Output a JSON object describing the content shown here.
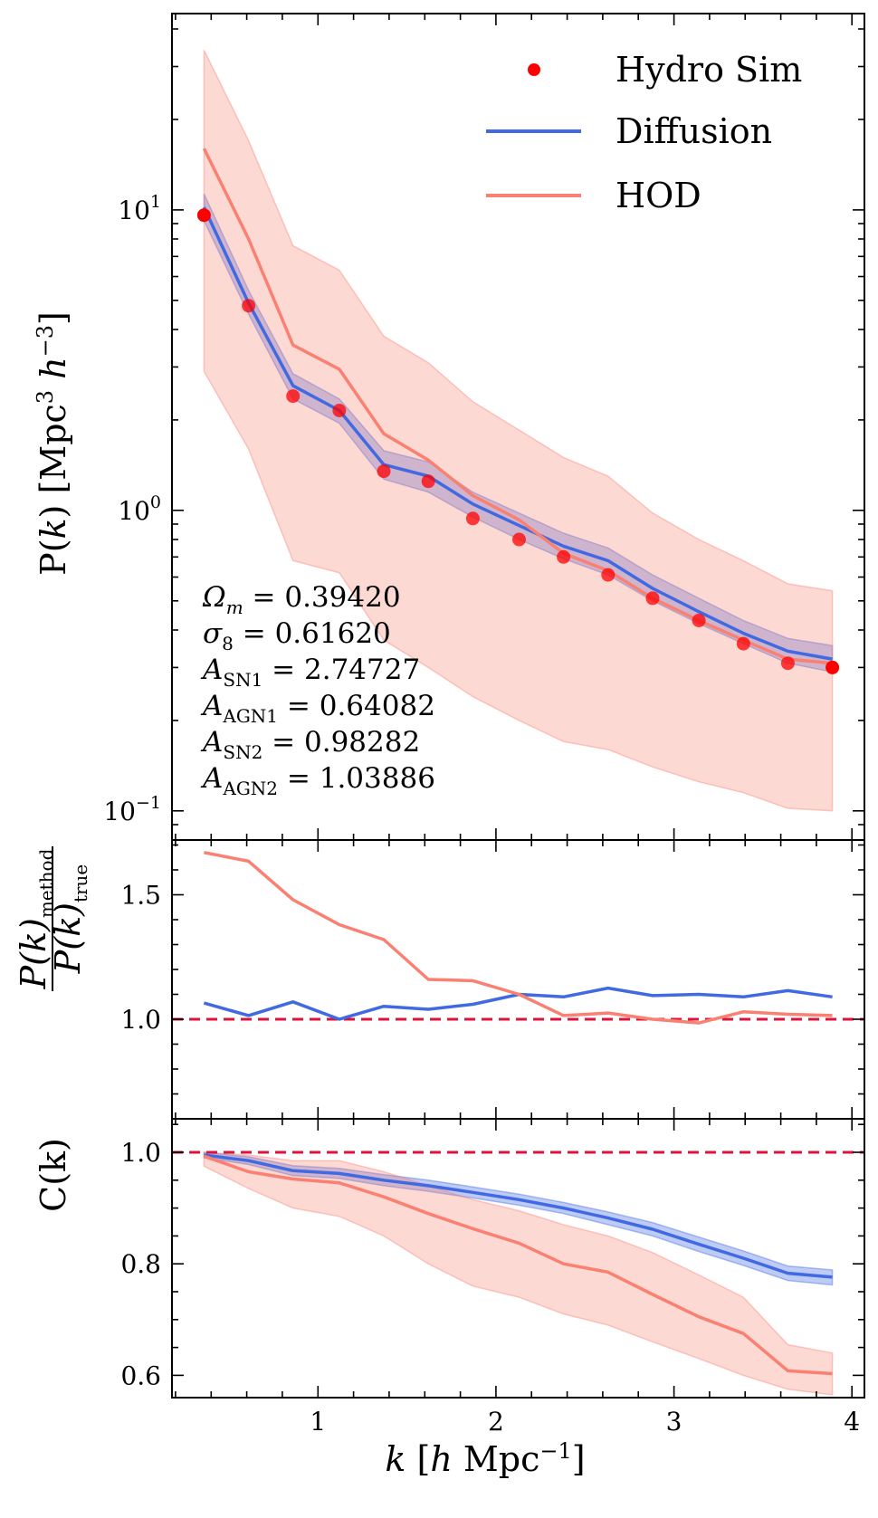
{
  "chart_data": [
    {
      "type": "line",
      "panel": "power-spectrum",
      "yscale": "log",
      "xlabel": "k [h Mpc⁻¹]",
      "ylabel": "P(k) [Mpc³ h⁻³]",
      "xlim": [
        0.18,
        4.07
      ],
      "ylim": [
        0.08,
        45
      ],
      "y_ticks": [
        {
          "value": 10,
          "mantissa": "10",
          "exp": "1"
        },
        {
          "value": 1,
          "mantissa": "10",
          "exp": "0"
        },
        {
          "value": 0.1,
          "mantissa": "10",
          "exp": "−1"
        }
      ],
      "x": [
        0.36,
        0.61,
        0.86,
        1.12,
        1.37,
        1.62,
        1.87,
        2.13,
        2.38,
        2.63,
        2.88,
        3.14,
        3.39,
        3.64,
        3.89
      ],
      "series": [
        {
          "name": "Hydro Sim",
          "kind": "scatter",
          "color": "#ff0000",
          "values": [
            9.6,
            4.8,
            2.4,
            2.15,
            1.35,
            1.25,
            0.94,
            0.8,
            0.7,
            0.61,
            0.51,
            0.43,
            0.36,
            0.31,
            0.3
          ]
        },
        {
          "name": "Diffusion",
          "kind": "line",
          "color": "#4169e1",
          "values": [
            10.2,
            4.9,
            2.6,
            2.15,
            1.42,
            1.3,
            1.05,
            0.89,
            0.76,
            0.68,
            0.55,
            0.46,
            0.39,
            0.34,
            0.32
          ],
          "band_lower": [
            9.2,
            4.5,
            2.35,
            1.95,
            1.27,
            1.15,
            0.95,
            0.8,
            0.69,
            0.61,
            0.5,
            0.42,
            0.36,
            0.31,
            0.29
          ],
          "band_upper": [
            11.3,
            5.4,
            2.85,
            2.35,
            1.58,
            1.45,
            1.15,
            0.98,
            0.84,
            0.75,
            0.61,
            0.51,
            0.43,
            0.375,
            0.355
          ]
        },
        {
          "name": "HOD",
          "kind": "line",
          "color": "#fa8072",
          "values": [
            16,
            8,
            3.55,
            2.95,
            1.8,
            1.47,
            1.12,
            0.93,
            0.72,
            0.63,
            0.51,
            0.43,
            0.37,
            0.32,
            0.31
          ],
          "band_lower": [
            2.9,
            1.6,
            0.68,
            0.62,
            0.37,
            0.3,
            0.24,
            0.2,
            0.17,
            0.16,
            0.14,
            0.125,
            0.115,
            0.102,
            0.1
          ],
          "band_upper": [
            34,
            17,
            7.6,
            6.3,
            3.8,
            3.1,
            2.3,
            1.85,
            1.5,
            1.3,
            0.98,
            0.8,
            0.68,
            0.57,
            0.54
          ]
        }
      ],
      "legend": [
        "Hydro Sim",
        "Diffusion",
        "HOD"
      ],
      "legend_position": "top-right",
      "annotations": [
        {
          "sym": "Ω",
          "sub": "m",
          "value": "= 0.39420"
        },
        {
          "sym": "σ",
          "sub": "8",
          "value": "= 0.61620"
        },
        {
          "sym": "A",
          "sub": "SN1",
          "value": "= 2.74727"
        },
        {
          "sym": "A",
          "sub": "AGN1",
          "value": "= 0.64082"
        },
        {
          "sym": "A",
          "sub": "SN2",
          "value": "= 0.98282"
        },
        {
          "sym": "A",
          "sub": "AGN2",
          "value": "= 1.03886"
        }
      ]
    },
    {
      "type": "line",
      "panel": "ratio",
      "ylabel": "P(k)method / P(k)true",
      "ylabel_parts": {
        "num": "P(k)",
        "num_sub": "method",
        "den": "P(k)",
        "den_sub": "true"
      },
      "xlim": [
        0.18,
        4.07
      ],
      "ylim": [
        0.6,
        1.72
      ],
      "y_ticks": [
        "1.0",
        "1.5"
      ],
      "reference_line": {
        "y": 1.0,
        "color": "#dc143c",
        "style": "dashed"
      },
      "x": [
        0.36,
        0.61,
        0.86,
        1.12,
        1.37,
        1.62,
        1.87,
        2.13,
        2.38,
        2.63,
        2.88,
        3.14,
        3.39,
        3.64,
        3.89
      ],
      "series": [
        {
          "name": "Diffusion",
          "color": "#4169e1",
          "values": [
            1.065,
            1.015,
            1.07,
            1.0,
            1.052,
            1.04,
            1.06,
            1.1,
            1.09,
            1.125,
            1.095,
            1.1,
            1.09,
            1.115,
            1.09
          ]
        },
        {
          "name": "HOD",
          "color": "#fa8072",
          "values": [
            1.67,
            1.635,
            1.48,
            1.38,
            1.32,
            1.16,
            1.155,
            1.1,
            1.015,
            1.025,
            1.0,
            0.985,
            1.03,
            1.02,
            1.015
          ]
        }
      ]
    },
    {
      "type": "line",
      "panel": "cross-correlation",
      "ylabel": "C(k)",
      "xlabel": "k [h Mpc⁻¹]",
      "xlim": [
        0.18,
        4.07
      ],
      "ylim": [
        0.56,
        1.06
      ],
      "x_ticks": [
        "1",
        "2",
        "3",
        "4"
      ],
      "y_ticks": [
        "0.6",
        "0.8",
        "1.0"
      ],
      "reference_line": {
        "y": 1.0,
        "color": "#dc143c",
        "style": "dashed"
      },
      "x": [
        0.36,
        0.61,
        0.86,
        1.12,
        1.37,
        1.62,
        1.87,
        2.13,
        2.38,
        2.63,
        2.88,
        3.14,
        3.39,
        3.64,
        3.89
      ],
      "series": [
        {
          "name": "Diffusion",
          "color": "#4169e1",
          "values": [
            0.995,
            0.985,
            0.967,
            0.962,
            0.95,
            0.94,
            0.928,
            0.915,
            0.9,
            0.882,
            0.862,
            0.835,
            0.81,
            0.783,
            0.776
          ],
          "band_lower": [
            0.99,
            0.978,
            0.958,
            0.953,
            0.94,
            0.93,
            0.918,
            0.905,
            0.89,
            0.87,
            0.85,
            0.822,
            0.797,
            0.77,
            0.762
          ],
          "band_upper": [
            1.0,
            0.992,
            0.976,
            0.971,
            0.96,
            0.95,
            0.938,
            0.925,
            0.91,
            0.893,
            0.874,
            0.848,
            0.823,
            0.796,
            0.789
          ]
        },
        {
          "name": "HOD",
          "color": "#fa8072",
          "values": [
            0.993,
            0.965,
            0.952,
            0.945,
            0.92,
            0.89,
            0.863,
            0.837,
            0.8,
            0.785,
            0.745,
            0.705,
            0.675,
            0.608,
            0.603
          ],
          "band_lower": [
            0.975,
            0.935,
            0.9,
            0.885,
            0.85,
            0.8,
            0.76,
            0.74,
            0.71,
            0.69,
            0.66,
            0.63,
            0.6,
            0.575,
            0.565
          ],
          "band_upper": [
            1.0,
            0.995,
            0.985,
            0.985,
            0.965,
            0.94,
            0.915,
            0.895,
            0.87,
            0.85,
            0.82,
            0.78,
            0.74,
            0.655,
            0.64
          ]
        }
      ]
    }
  ]
}
